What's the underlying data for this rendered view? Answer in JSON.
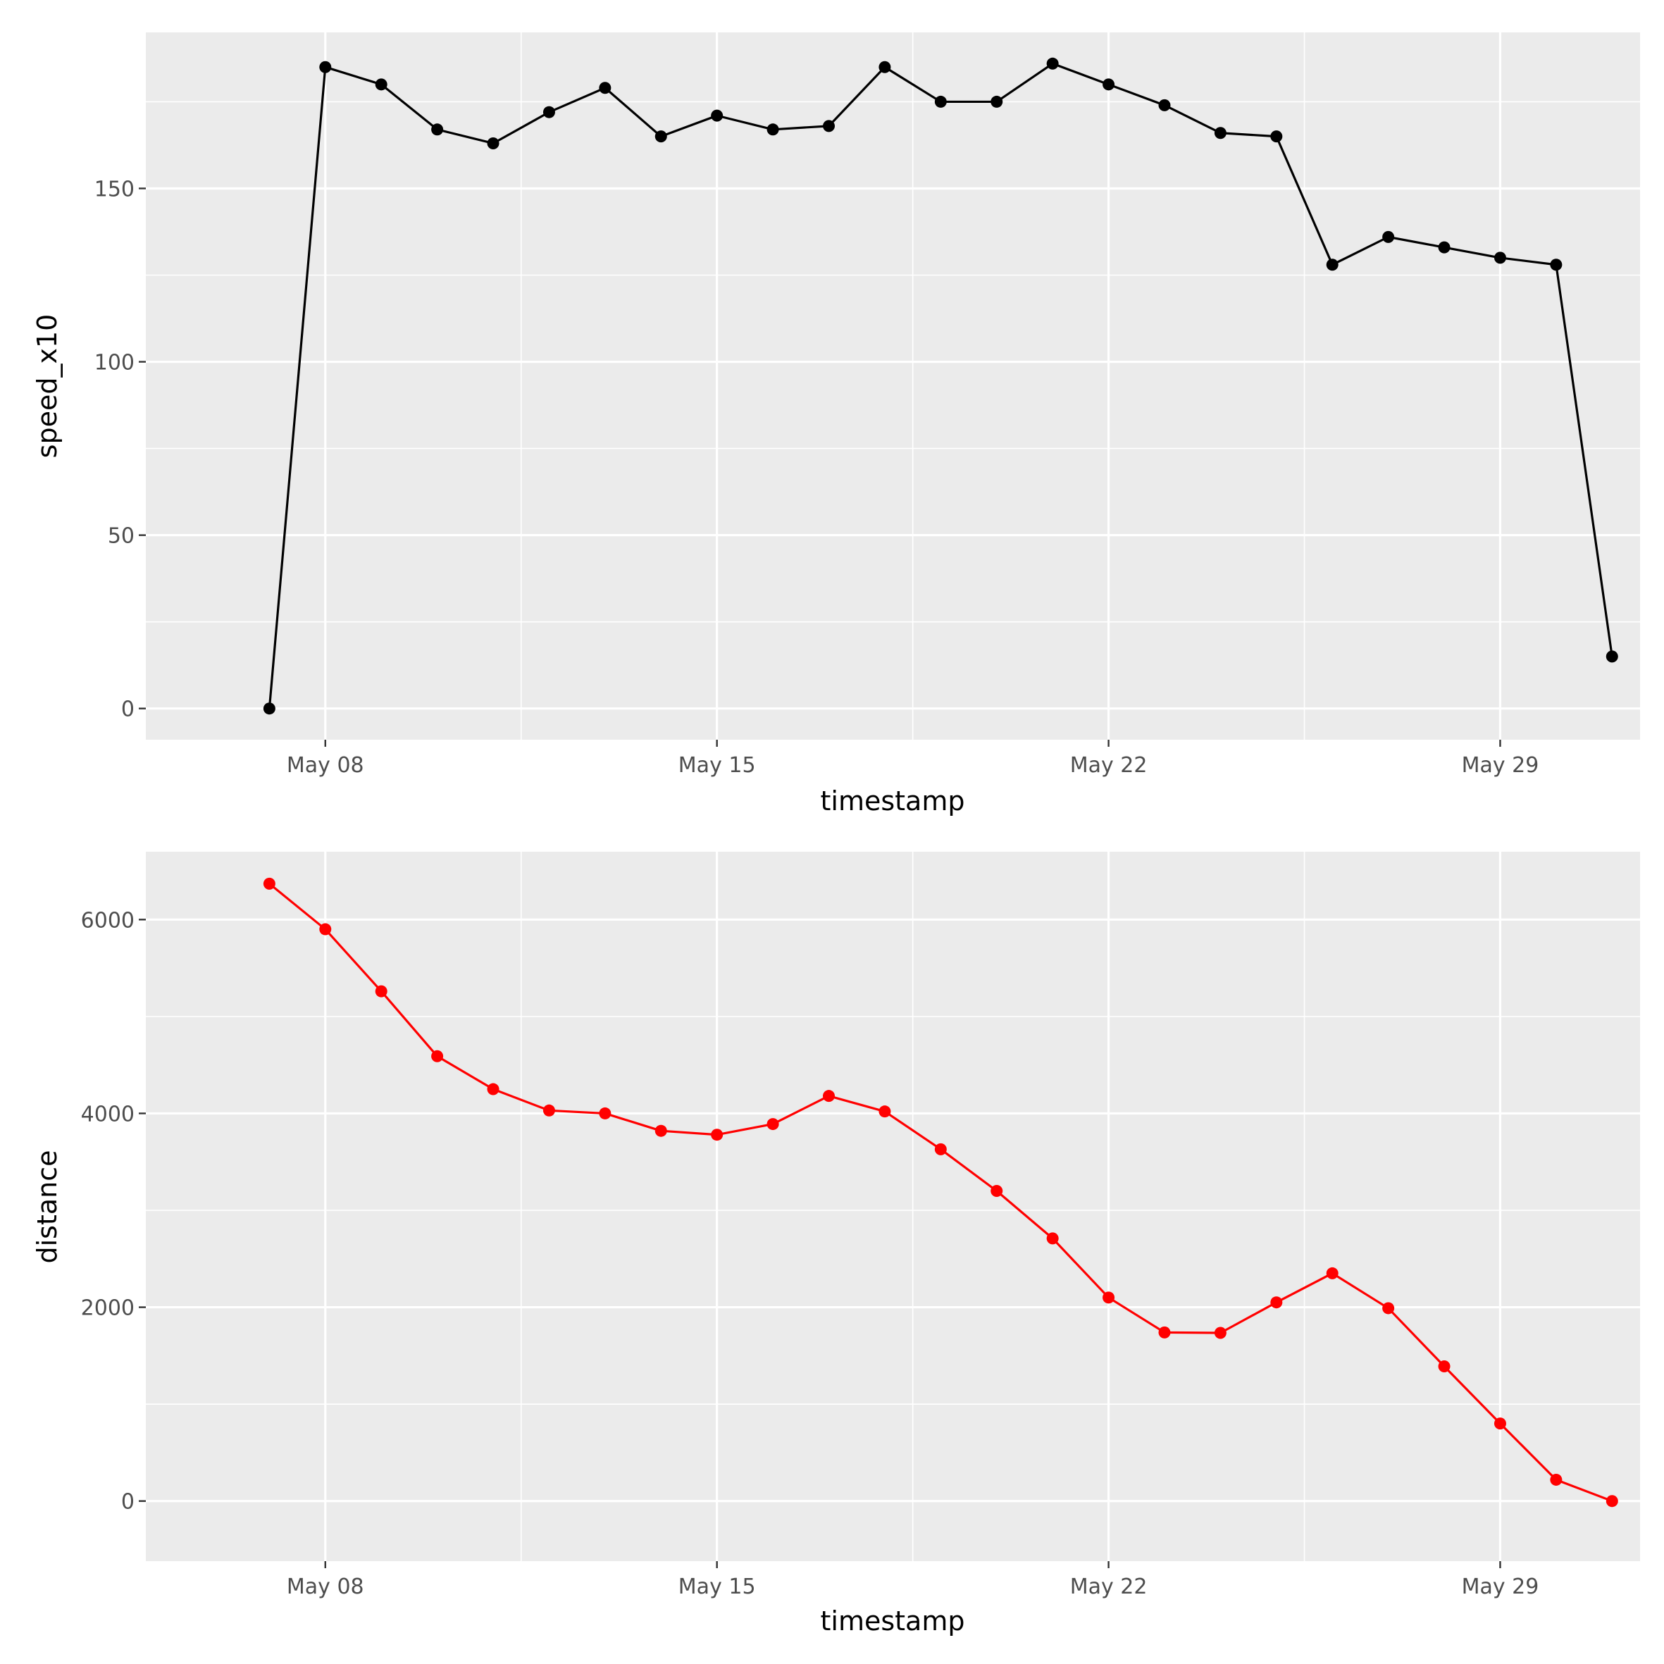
{
  "chart_data": [
    {
      "type": "line",
      "xlabel": "timestamp",
      "ylabel": "speed_x10",
      "x_ticks": [
        {
          "date": "2024-05-08",
          "label": "May 08"
        },
        {
          "date": "2024-05-15",
          "label": "May 15"
        },
        {
          "date": "2024-05-22",
          "label": "May 22"
        },
        {
          "date": "2024-05-29",
          "label": "May 29"
        }
      ],
      "y_ticks": [
        0,
        50,
        100,
        150
      ],
      "xlim": [
        "2024-05-04T19:00",
        "2024-05-31T12:00"
      ],
      "ylim": [
        -9,
        195
      ],
      "grid": true,
      "line_color": "#000000",
      "series": [
        {
          "x": [
            "2024-05-07",
            "2024-05-08",
            "2024-05-09",
            "2024-05-10",
            "2024-05-11",
            "2024-05-12",
            "2024-05-13",
            "2024-05-14",
            "2024-05-15",
            "2024-05-16",
            "2024-05-17",
            "2024-05-18",
            "2024-05-19",
            "2024-05-20",
            "2024-05-21",
            "2024-05-22",
            "2024-05-23",
            "2024-05-24",
            "2024-05-25",
            "2024-05-26",
            "2024-05-27",
            "2024-05-28",
            "2024-05-29",
            "2024-05-30",
            "2024-05-31"
          ],
          "values": [
            0,
            185,
            180,
            167,
            163,
            172,
            179,
            165,
            171,
            167,
            168,
            185,
            175,
            175,
            186,
            180,
            174,
            166,
            165,
            128,
            136,
            133,
            130,
            128,
            15
          ]
        }
      ]
    },
    {
      "type": "line",
      "xlabel": "timestamp",
      "ylabel": "distance",
      "x_ticks": [
        {
          "date": "2024-05-08",
          "label": "May 08"
        },
        {
          "date": "2024-05-15",
          "label": "May 15"
        },
        {
          "date": "2024-05-22",
          "label": "May 22"
        },
        {
          "date": "2024-05-29",
          "label": "May 29"
        }
      ],
      "y_ticks": [
        0,
        2000,
        4000,
        6000
      ],
      "xlim": [
        "2024-05-04T19:00",
        "2024-05-31T12:00"
      ],
      "ylim": [
        -620,
        6700
      ],
      "grid": true,
      "line_color": "#ff0000",
      "series": [
        {
          "x": [
            "2024-05-07",
            "2024-05-08",
            "2024-05-09",
            "2024-05-10",
            "2024-05-11",
            "2024-05-12",
            "2024-05-13",
            "2024-05-14",
            "2024-05-15",
            "2024-05-16",
            "2024-05-17",
            "2024-05-18",
            "2024-05-19",
            "2024-05-20",
            "2024-05-21",
            "2024-05-22",
            "2024-05-23",
            "2024-05-24",
            "2024-05-25",
            "2024-05-26",
            "2024-05-27",
            "2024-05-28",
            "2024-05-29",
            "2024-05-30",
            "2024-05-31"
          ],
          "values": [
            6370,
            5900,
            5260,
            4590,
            4250,
            4030,
            4000,
            3820,
            3780,
            3890,
            4180,
            4020,
            3630,
            3200,
            2710,
            2100,
            1740,
            1735,
            2050,
            2350,
            1990,
            1390,
            800,
            220,
            0
          ]
        }
      ]
    }
  ]
}
